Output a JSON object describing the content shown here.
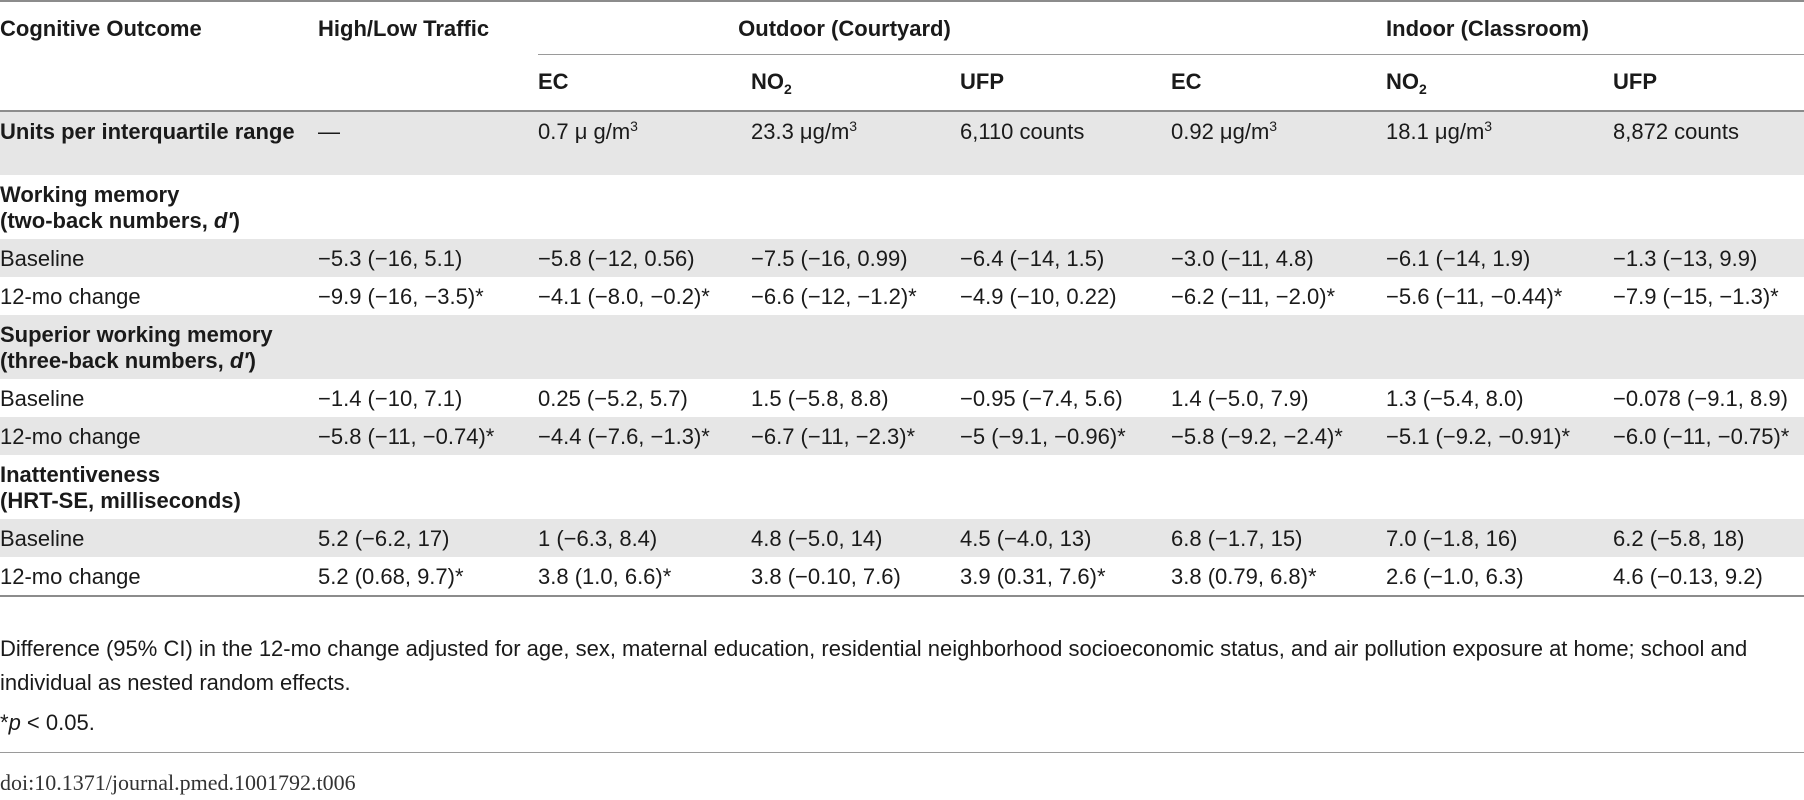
{
  "table": {
    "header": {
      "col_label": "Cognitive Outcome",
      "traffic_label": "High/Low Traffic",
      "outdoor_group": "Outdoor (Courtyard)",
      "indoor_group": "Indoor (Classroom)",
      "sub_ec": "EC",
      "sub_no2_base": "NO",
      "sub_no2_sub": "2",
      "sub_ufp": "UFP"
    },
    "units_row": {
      "label": "Units per interquartile range",
      "traffic": "—",
      "out_ec": "0.7 μ g/m",
      "out_no2": "23.3 μg/m",
      "out_ufp": "6,110 counts",
      "in_ec": "0.92 μg/m",
      "in_no2": "18.1 μg/m",
      "in_ufp": "8,872 counts",
      "sup3": "3"
    },
    "sections": [
      {
        "title_line1": "Working memory",
        "title_line2_pre": "(two-back numbers, ",
        "title_italic": "d′",
        "title_line2_post": ")",
        "rows": [
          {
            "label": "Baseline",
            "vals": [
              "−5.3 (−16, 5.1)",
              "−5.8 (−12, 0.56)",
              "−7.5 (−16, 0.99)",
              "−6.4 (−14, 1.5)",
              "−3.0 (−11, 4.8)",
              "−6.1 (−14, 1.9)",
              "−1.3 (−13, 9.9)"
            ]
          },
          {
            "label": "12-mo change",
            "vals": [
              "−9.9 (−16, −3.5)*",
              "−4.1 (−8.0, −0.2)*",
              "−6.6 (−12, −1.2)*",
              "−4.9 (−10, 0.22)",
              "−6.2 (−11, −2.0)*",
              "−5.6 (−11, −0.44)*",
              "−7.9 (−15, −1.3)*"
            ]
          }
        ]
      },
      {
        "title_line1": "Superior working memory",
        "title_line2_pre": "(three-back numbers, ",
        "title_italic": "d′",
        "title_line2_post": ")",
        "rows": [
          {
            "label": "Baseline",
            "vals": [
              "−1.4 (−10, 7.1)",
              "0.25 (−5.2, 5.7)",
              "1.5 (−5.8, 8.8)",
              "−0.95 (−7.4, 5.6)",
              "1.4 (−5.0, 7.9)",
              "1.3 (−5.4, 8.0)",
              "−0.078 (−9.1, 8.9)"
            ]
          },
          {
            "label": "12-mo change",
            "vals": [
              "−5.8 (−11, −0.74)*",
              "−4.4 (−7.6, −1.3)*",
              "−6.7 (−11, −2.3)*",
              "−5 (−9.1, −0.96)*",
              "−5.8 (−9.2, −2.4)*",
              "−5.1 (−9.2, −0.91)*",
              "−6.0 (−11, −0.75)*"
            ]
          }
        ]
      },
      {
        "title_line1": "Inattentiveness",
        "title_line2_pre": "(HRT-SE, milliseconds)",
        "title_italic": "",
        "title_line2_post": "",
        "rows": [
          {
            "label": "Baseline",
            "vals": [
              "5.2 (−6.2, 17)",
              "1 (−6.3, 8.4)",
              "4.8 (−5.0, 14)",
              "4.5 (−4.0, 13)",
              "6.8 (−1.7, 15)",
              "7.0 (−1.8, 16)",
              "6.2 (−5.8, 18)"
            ]
          },
          {
            "label": "12-mo change",
            "vals": [
              "5.2 (0.68, 9.7)*",
              "3.8 (1.0, 6.6)*",
              "3.8 (−0.10, 7.6)",
              "3.9 (0.31, 7.6)*",
              "3.8 (0.79, 6.8)*",
              "2.6 (−1.0, 6.3)",
              "4.6 (−0.13, 9.2)"
            ]
          }
        ]
      }
    ]
  },
  "footnotes": {
    "note1": "Difference (95% CI) in the 12-mo change adjusted for age, sex, maternal education, residential neighborhood socioeconomic status, and air pollution exposure at home; school and individual as nested random effects.",
    "note2_star": "*",
    "note2_p": "p",
    "note2_rest": " < 0.05."
  },
  "doi": "doi:10.1371/journal.pmed.1001792.t006"
}
